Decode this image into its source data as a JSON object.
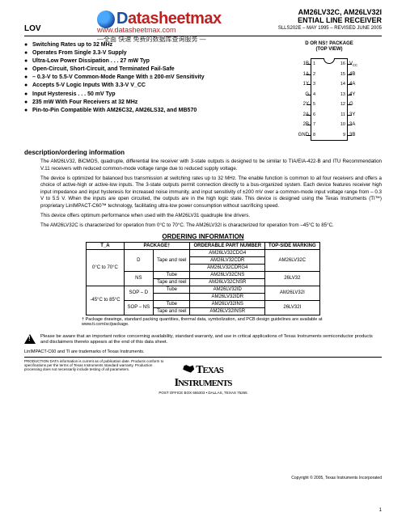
{
  "watermark": {
    "brand_blue": "D",
    "brand_red": "atasheetmax",
    "url": "www.datasheetmax.com",
    "cn": "—全面  快速  免费的数据库查询服务 —"
  },
  "header": {
    "lov": "LOV",
    "parts": "AM26LV32C, AM26LV32I",
    "subtitle": "ENTIAL LINE RECEIVER",
    "docrev": "SLLS202E – MAY 1995 – REVISED JUNE 2005"
  },
  "features": [
    "Switching Rates up to 32 MHz",
    "Operates From Single 3.3-V Supply",
    "Ultra-Low Power Dissipation . . . 27 mW Typ",
    "Open-Circuit, Short-Circuit, and Terminated Fail-Safe",
    "– 0.3-V to 5.5-V Common-Mode Range With ± 200-mV Sensitivity",
    "Accepts 5-V Logic Inputs With 3.3-V V_CC",
    "Input Hysteresis . . . 50 mV Typ",
    "235 mW With Four Receivers at 32 MHz",
    "Pin-to-Pin Compatible With AM26C32, AM26LS32, and MB570"
  ],
  "pinout": {
    "title1": "D OR NS† PACKAGE",
    "title2": "(TOP VIEW)",
    "left": [
      {
        "lbl": "1B",
        "n": "1"
      },
      {
        "lbl": "1A",
        "n": "2"
      },
      {
        "lbl": "1Y",
        "n": "3"
      },
      {
        "lbl": "G",
        "n": "4"
      },
      {
        "lbl": "2Y",
        "n": "5"
      },
      {
        "lbl": "2A",
        "n": "6"
      },
      {
        "lbl": "2B",
        "n": "7"
      },
      {
        "lbl": "GND",
        "n": "8"
      }
    ],
    "right": [
      {
        "lbl": "V_CC",
        "n": "16"
      },
      {
        "lbl": "4B",
        "n": "15"
      },
      {
        "lbl": "4A",
        "n": "14"
      },
      {
        "lbl": "4Y",
        "n": "13"
      },
      {
        "lbl": "G",
        "n": "12"
      },
      {
        "lbl": "3Y",
        "n": "11"
      },
      {
        "lbl": "3A",
        "n": "10"
      },
      {
        "lbl": "3B",
        "n": "9"
      }
    ]
  },
  "sections": {
    "desc_title": "description/ordering information",
    "p1": "The AM26LV32, BiCMOS, quadruple, differential line receiver with 3-state outputs is designed to be similar to TIA/EIA-422-B and ITU Recommendation V.11 receivers with reduced common-mode voltage range due to reduced supply voltage.",
    "p2": "The device is optimized for balanced bus transmission at switching rates up to 32 MHz. The enable function is common to all four receivers and offers a choice of active-high or active-low inputs. The 3-state outputs permit connection directly to a bus-organized system. Each device features receiver high input impedance and input hysteresis for increased noise immunity, and input sensitivity of ±200 mV over a common-mode input voltage range from – 0.3 V to 5.5 V. When the inputs are open circuited, the outputs are in the high logic state. This device is designed using the Texas Instruments (TI™) proprietary LinIMPACT-C60™ technology, facilitating ultra-low power consumption without sacrificing speed.",
    "p3": "This device offers optimum performance when used with the AM26LV31 quadruple line drivers.",
    "p4": "The AM26LV32C is characterized for operation from 0°C to 70°C. The AM26LV32I is characterized for operation from –45°C to 85°C."
  },
  "ordering": {
    "title": "ORDERING INFORMATION",
    "headers": {
      "ta": "T_A",
      "pkg": "PACKAGE†",
      "part": "ORDERABLE PART NUMBER",
      "mark": "TOP-SIDE MARKING"
    },
    "rows": [
      {
        "ta": "0°C to 70°C",
        "pkgL": "D",
        "pkgR": "Tape and reel",
        "part": "AM26LV32CDG4",
        "mark": "AM26LV32C"
      },
      {
        "part": "AM26LV32CDR"
      },
      {
        "part": "AM26LV32CDRG4"
      },
      {
        "pkgL": "NS",
        "pkgR": "Tube",
        "part": "AM26LV32CNS",
        "mark": "26LV32"
      },
      {
        "pkgR": "Tape and reel",
        "part": "AM26LV32CNSR"
      },
      {
        "ta": "-45°C to 85°C",
        "pkgL": "SOP – D",
        "pkgR": "Tube",
        "part": "AM26LV32ID",
        "mark": "AM26LV32I"
      },
      {
        "part": "AM26LV32IDR"
      },
      {
        "pkgL": "SOP – NS",
        "pkgR": "Tube",
        "part": "AM26LV32INS",
        "mark": "26LV32I"
      },
      {
        "pkgR": "Tape and reel",
        "part": "AM26LV32INSR"
      }
    ],
    "footnote": "† Package drawings, standard packing quantities, thermal data, symbolization, and PCB design guidelines are available at www.ti.com/sc/package."
  },
  "notice": "Please be aware that an important notice concerning availability, standard warranty, and use in critical applications of Texas Instruments semiconductor products and disclaimers thereto appears at the end of this data sheet.",
  "tm": "LinIMPACT-C60 and TI are trademarks of Texas Instruments.",
  "prod_data": "PRODUCTION DATA information is current as of publication date. Products conform to specifications per the terms of Texas Instruments standard warranty. Production processing does not necessarily include testing of all parameters.",
  "copyright": "Copyright © 2005, Texas Instruments Incorporated",
  "ti": {
    "name": "TEXAS INSTRUMENTS",
    "addr": "POST OFFICE BOX 655303 • DALLAS, TEXAS 75265"
  },
  "page": "1"
}
